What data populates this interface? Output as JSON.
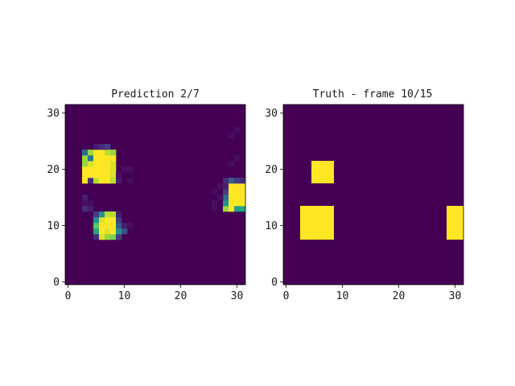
{
  "colors": {
    "background_cell": "#440154",
    "cell_dim": "#470b5c",
    "cell_faint": "#4a1a65",
    "cell_mid": "#31688e",
    "cell_teal": "#21918c",
    "cell_green": "#35b779",
    "cell_lime": "#90d743",
    "cell_yellow": "#fde725"
  },
  "chart_data": [
    {
      "type": "heatmap",
      "title": "Prediction 2/7",
      "xlabel": "",
      "ylabel": "",
      "xlim": [
        -0.5,
        31.5
      ],
      "ylim": [
        -0.5,
        31.5
      ],
      "xticks": [
        "0",
        "10",
        "20",
        "30"
      ],
      "yticks": [
        "0",
        "10",
        "20",
        "30"
      ],
      "grid": false,
      "colormap": "viridis",
      "value_range": [
        0,
        1
      ],
      "background_value": 0,
      "cells": [
        [
          5,
          8,
          0.15
        ],
        [
          6,
          8,
          0.95
        ],
        [
          7,
          8,
          0.85
        ],
        [
          8,
          8,
          0.8
        ],
        [
          9,
          8,
          0.2
        ],
        [
          5,
          9,
          0.6
        ],
        [
          6,
          9,
          1.0
        ],
        [
          7,
          9,
          0.95
        ],
        [
          8,
          9,
          1.0
        ],
        [
          9,
          9,
          0.5
        ],
        [
          10,
          9,
          0.25
        ],
        [
          5,
          10,
          0.75
        ],
        [
          6,
          10,
          1.0
        ],
        [
          7,
          10,
          1.0
        ],
        [
          8,
          10,
          1.0
        ],
        [
          9,
          10,
          0.3
        ],
        [
          10,
          10,
          0.1
        ],
        [
          11,
          10,
          0.05
        ],
        [
          5,
          11,
          0.5
        ],
        [
          6,
          11,
          0.95
        ],
        [
          7,
          11,
          1.0
        ],
        [
          8,
          11,
          1.0
        ],
        [
          9,
          11,
          0.2
        ],
        [
          5,
          12,
          0.2
        ],
        [
          6,
          12,
          0.5
        ],
        [
          7,
          12,
          0.9
        ],
        [
          8,
          12,
          0.9
        ],
        [
          9,
          12,
          0.1
        ],
        [
          3,
          13,
          0.15
        ],
        [
          4,
          13,
          0.1
        ],
        [
          3,
          14,
          0.05
        ],
        [
          4,
          14,
          0.05
        ],
        [
          3,
          15,
          0.1
        ],
        [
          3,
          18,
          1.0
        ],
        [
          4,
          18,
          0.15
        ],
        [
          5,
          18,
          0.9
        ],
        [
          6,
          18,
          1.0
        ],
        [
          7,
          18,
          1.0
        ],
        [
          8,
          18,
          0.9
        ],
        [
          9,
          18,
          0.1
        ],
        [
          11,
          18,
          0.05
        ],
        [
          3,
          19,
          1.0
        ],
        [
          4,
          19,
          1.0
        ],
        [
          5,
          19,
          1.0
        ],
        [
          6,
          19,
          1.0
        ],
        [
          7,
          19,
          1.0
        ],
        [
          8,
          19,
          0.95
        ],
        [
          9,
          19,
          0.05
        ],
        [
          3,
          20,
          1.0
        ],
        [
          4,
          20,
          1.0
        ],
        [
          5,
          20,
          1.0
        ],
        [
          6,
          20,
          1.0
        ],
        [
          7,
          20,
          1.0
        ],
        [
          8,
          20,
          0.95
        ],
        [
          10,
          20,
          0.05
        ],
        [
          11,
          20,
          0.05
        ],
        [
          3,
          21,
          0.85
        ],
        [
          4,
          21,
          0.95
        ],
        [
          5,
          21,
          1.0
        ],
        [
          6,
          21,
          1.0
        ],
        [
          7,
          21,
          1.0
        ],
        [
          8,
          21,
          0.95
        ],
        [
          3,
          22,
          0.85
        ],
        [
          4,
          22,
          0.4
        ],
        [
          5,
          22,
          1.0
        ],
        [
          6,
          22,
          1.0
        ],
        [
          7,
          22,
          1.0
        ],
        [
          8,
          22,
          1.0
        ],
        [
          3,
          23,
          0.35
        ],
        [
          4,
          23,
          0.85
        ],
        [
          5,
          23,
          1.0
        ],
        [
          6,
          23,
          1.0
        ],
        [
          7,
          23,
          0.9
        ],
        [
          8,
          23,
          0.85
        ],
        [
          5,
          24,
          0.1
        ],
        [
          6,
          24,
          0.15
        ],
        [
          7,
          24,
          0.2
        ],
        [
          28,
          13,
          0.85
        ],
        [
          29,
          13,
          1.0
        ],
        [
          30,
          13,
          0.55
        ],
        [
          31,
          13,
          0.6
        ],
        [
          28,
          14,
          0.5
        ],
        [
          29,
          14,
          1.0
        ],
        [
          30,
          14,
          1.0
        ],
        [
          31,
          14,
          1.0
        ],
        [
          28,
          15,
          0.35
        ],
        [
          29,
          15,
          1.0
        ],
        [
          30,
          15,
          1.0
        ],
        [
          31,
          15,
          1.0
        ],
        [
          28,
          16,
          0.2
        ],
        [
          29,
          16,
          1.0
        ],
        [
          30,
          16,
          1.0
        ],
        [
          31,
          16,
          1.0
        ],
        [
          28,
          17,
          0.1
        ],
        [
          29,
          17,
          1.0
        ],
        [
          30,
          17,
          1.0
        ],
        [
          31,
          17,
          1.0
        ],
        [
          28,
          18,
          0.15
        ],
        [
          29,
          18,
          0.3
        ],
        [
          30,
          18,
          0.2
        ],
        [
          31,
          18,
          0.15
        ],
        [
          26,
          13,
          0.05
        ],
        [
          26,
          14,
          0.05
        ],
        [
          27,
          15,
          0.05
        ],
        [
          26,
          16,
          0.05
        ],
        [
          27,
          17,
          0.05
        ],
        [
          29,
          21,
          0.05
        ],
        [
          30,
          22,
          0.05
        ],
        [
          29,
          26,
          0.05
        ],
        [
          30,
          27,
          0.05
        ]
      ]
    },
    {
      "type": "heatmap",
      "title": "Truth - frame 10/15",
      "xlabel": "",
      "ylabel": "",
      "xlim": [
        -0.5,
        31.5
      ],
      "ylim": [
        -0.5,
        31.5
      ],
      "xticks": [
        "0",
        "10",
        "20",
        "30"
      ],
      "yticks": [
        "0",
        "10",
        "20",
        "30"
      ],
      "grid": false,
      "colormap": "viridis",
      "value_range": [
        0,
        1
      ],
      "background_value": 0,
      "rects": [
        {
          "x0": 5,
          "x1": 8,
          "y0": 18,
          "y1": 21,
          "value": 1
        },
        {
          "x0": 3,
          "x1": 8,
          "y0": 8,
          "y1": 13,
          "value": 1
        },
        {
          "x0": 29,
          "x1": 31,
          "y0": 8,
          "y1": 13,
          "value": 1
        }
      ]
    }
  ]
}
